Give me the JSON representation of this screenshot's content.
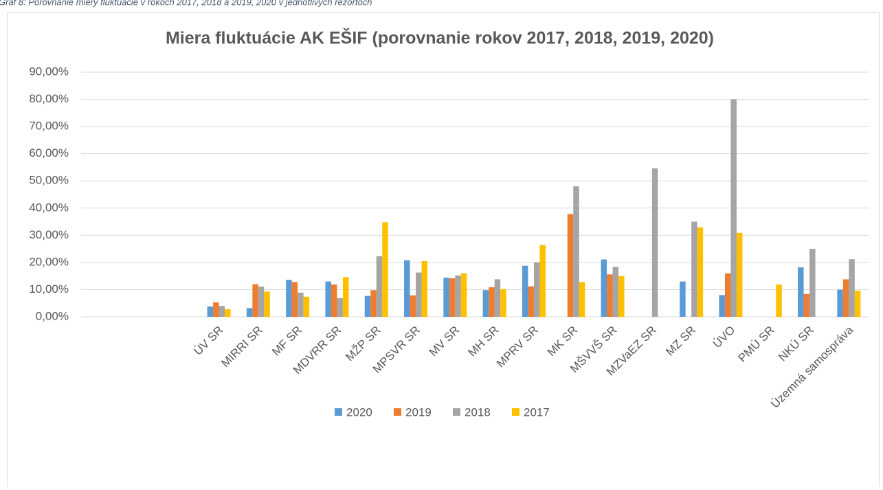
{
  "caption": "Graf 8: Porovnanie miery fluktuácie v rokoch 2017, 2018 a 2019, 2020 v jednotlivých rezortoch",
  "chart_data": {
    "type": "bar",
    "title": "Miera fluktuácie AK EŠIF (porovnanie rokov 2017, 2018, 2019, 2020)",
    "categories": [
      null,
      null,
      null,
      "ÚV SR",
      "MIRRI SR",
      "MF SR",
      "MDVRR SR",
      "MŽP SR",
      "MPSVR SR",
      "MV SR",
      "MH SR",
      "MPRV SR",
      "MK SR",
      "MŠVVŠ SR",
      "MZVaEZ SR",
      "MZ SR",
      "ÚVO",
      "PMÚ SR",
      "NKÚ SR",
      "Územná samospráva"
    ],
    "series": [
      {
        "name": "2020",
        "color": "#5b9bd5",
        "values": [
          null,
          null,
          null,
          3.8,
          3.2,
          13.6,
          13.0,
          7.7,
          20.8,
          14.4,
          9.8,
          18.8,
          0,
          21.1,
          0,
          13.0,
          8.0,
          0,
          18.2,
          10.0
        ]
      },
      {
        "name": "2019",
        "color": "#ed7d31",
        "values": [
          null,
          null,
          null,
          5.3,
          12.0,
          12.8,
          11.9,
          9.8,
          7.9,
          14.2,
          10.9,
          11.2,
          37.8,
          15.6,
          0,
          0,
          16.0,
          0,
          8.4,
          13.8
        ]
      },
      {
        "name": "2018",
        "color": "#a5a5a5",
        "values": [
          null,
          null,
          null,
          4.0,
          11.1,
          8.9,
          6.9,
          22.3,
          16.3,
          15.2,
          13.8,
          20.1,
          48.0,
          18.4,
          54.6,
          35.0,
          80.0,
          0,
          25.0,
          21.2
        ]
      },
      {
        "name": "2017",
        "color": "#ffc000",
        "values": [
          null,
          null,
          null,
          2.8,
          9.3,
          7.4,
          14.6,
          34.8,
          20.5,
          16.0,
          10.2,
          26.4,
          12.8,
          15.0,
          0,
          32.9,
          30.9,
          11.9,
          0,
          9.6
        ]
      }
    ],
    "ylim": [
      0,
      90
    ],
    "yticks": [
      {
        "value": 0,
        "label": "0,00%"
      },
      {
        "value": 10,
        "label": "10,00%"
      },
      {
        "value": 20,
        "label": "20,00%"
      },
      {
        "value": 30,
        "label": "30,00%"
      },
      {
        "value": 40,
        "label": "40,00%"
      },
      {
        "value": 50,
        "label": "50,00%"
      },
      {
        "value": 60,
        "label": "60,00%"
      },
      {
        "value": 70,
        "label": "70,00%"
      },
      {
        "value": 80,
        "label": "80,00%"
      },
      {
        "value": 90,
        "label": "90,00%"
      }
    ],
    "grid": true,
    "legend": "bottom"
  }
}
